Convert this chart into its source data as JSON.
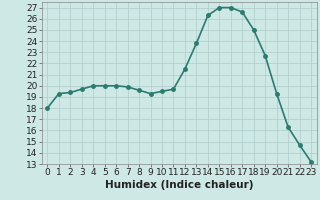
{
  "x": [
    0,
    1,
    2,
    3,
    4,
    5,
    6,
    7,
    8,
    9,
    10,
    11,
    12,
    13,
    14,
    15,
    16,
    17,
    18,
    19,
    20,
    21,
    22,
    23
  ],
  "y": [
    18.0,
    19.3,
    19.4,
    19.7,
    20.0,
    20.0,
    20.0,
    19.9,
    19.6,
    19.3,
    19.5,
    19.7,
    21.5,
    23.8,
    26.3,
    27.0,
    27.0,
    26.6,
    25.0,
    22.7,
    19.3,
    16.3,
    14.7,
    13.2
  ],
  "line_color": "#2d7a6e",
  "marker": "o",
  "markersize": 2.5,
  "linewidth": 1.2,
  "xlabel": "Humidex (Indice chaleur)",
  "xlim": [
    -0.5,
    23.5
  ],
  "ylim": [
    13,
    27.5
  ],
  "yticks": [
    13,
    14,
    15,
    16,
    17,
    18,
    19,
    20,
    21,
    22,
    23,
    24,
    25,
    26,
    27
  ],
  "xticks": [
    0,
    1,
    2,
    3,
    4,
    5,
    6,
    7,
    8,
    9,
    10,
    11,
    12,
    13,
    14,
    15,
    16,
    17,
    18,
    19,
    20,
    21,
    22,
    23
  ],
  "bg_color": "#cde8e5",
  "grid_color": "#b0ccca",
  "tick_fontsize": 6.5,
  "xlabel_fontsize": 7.5
}
